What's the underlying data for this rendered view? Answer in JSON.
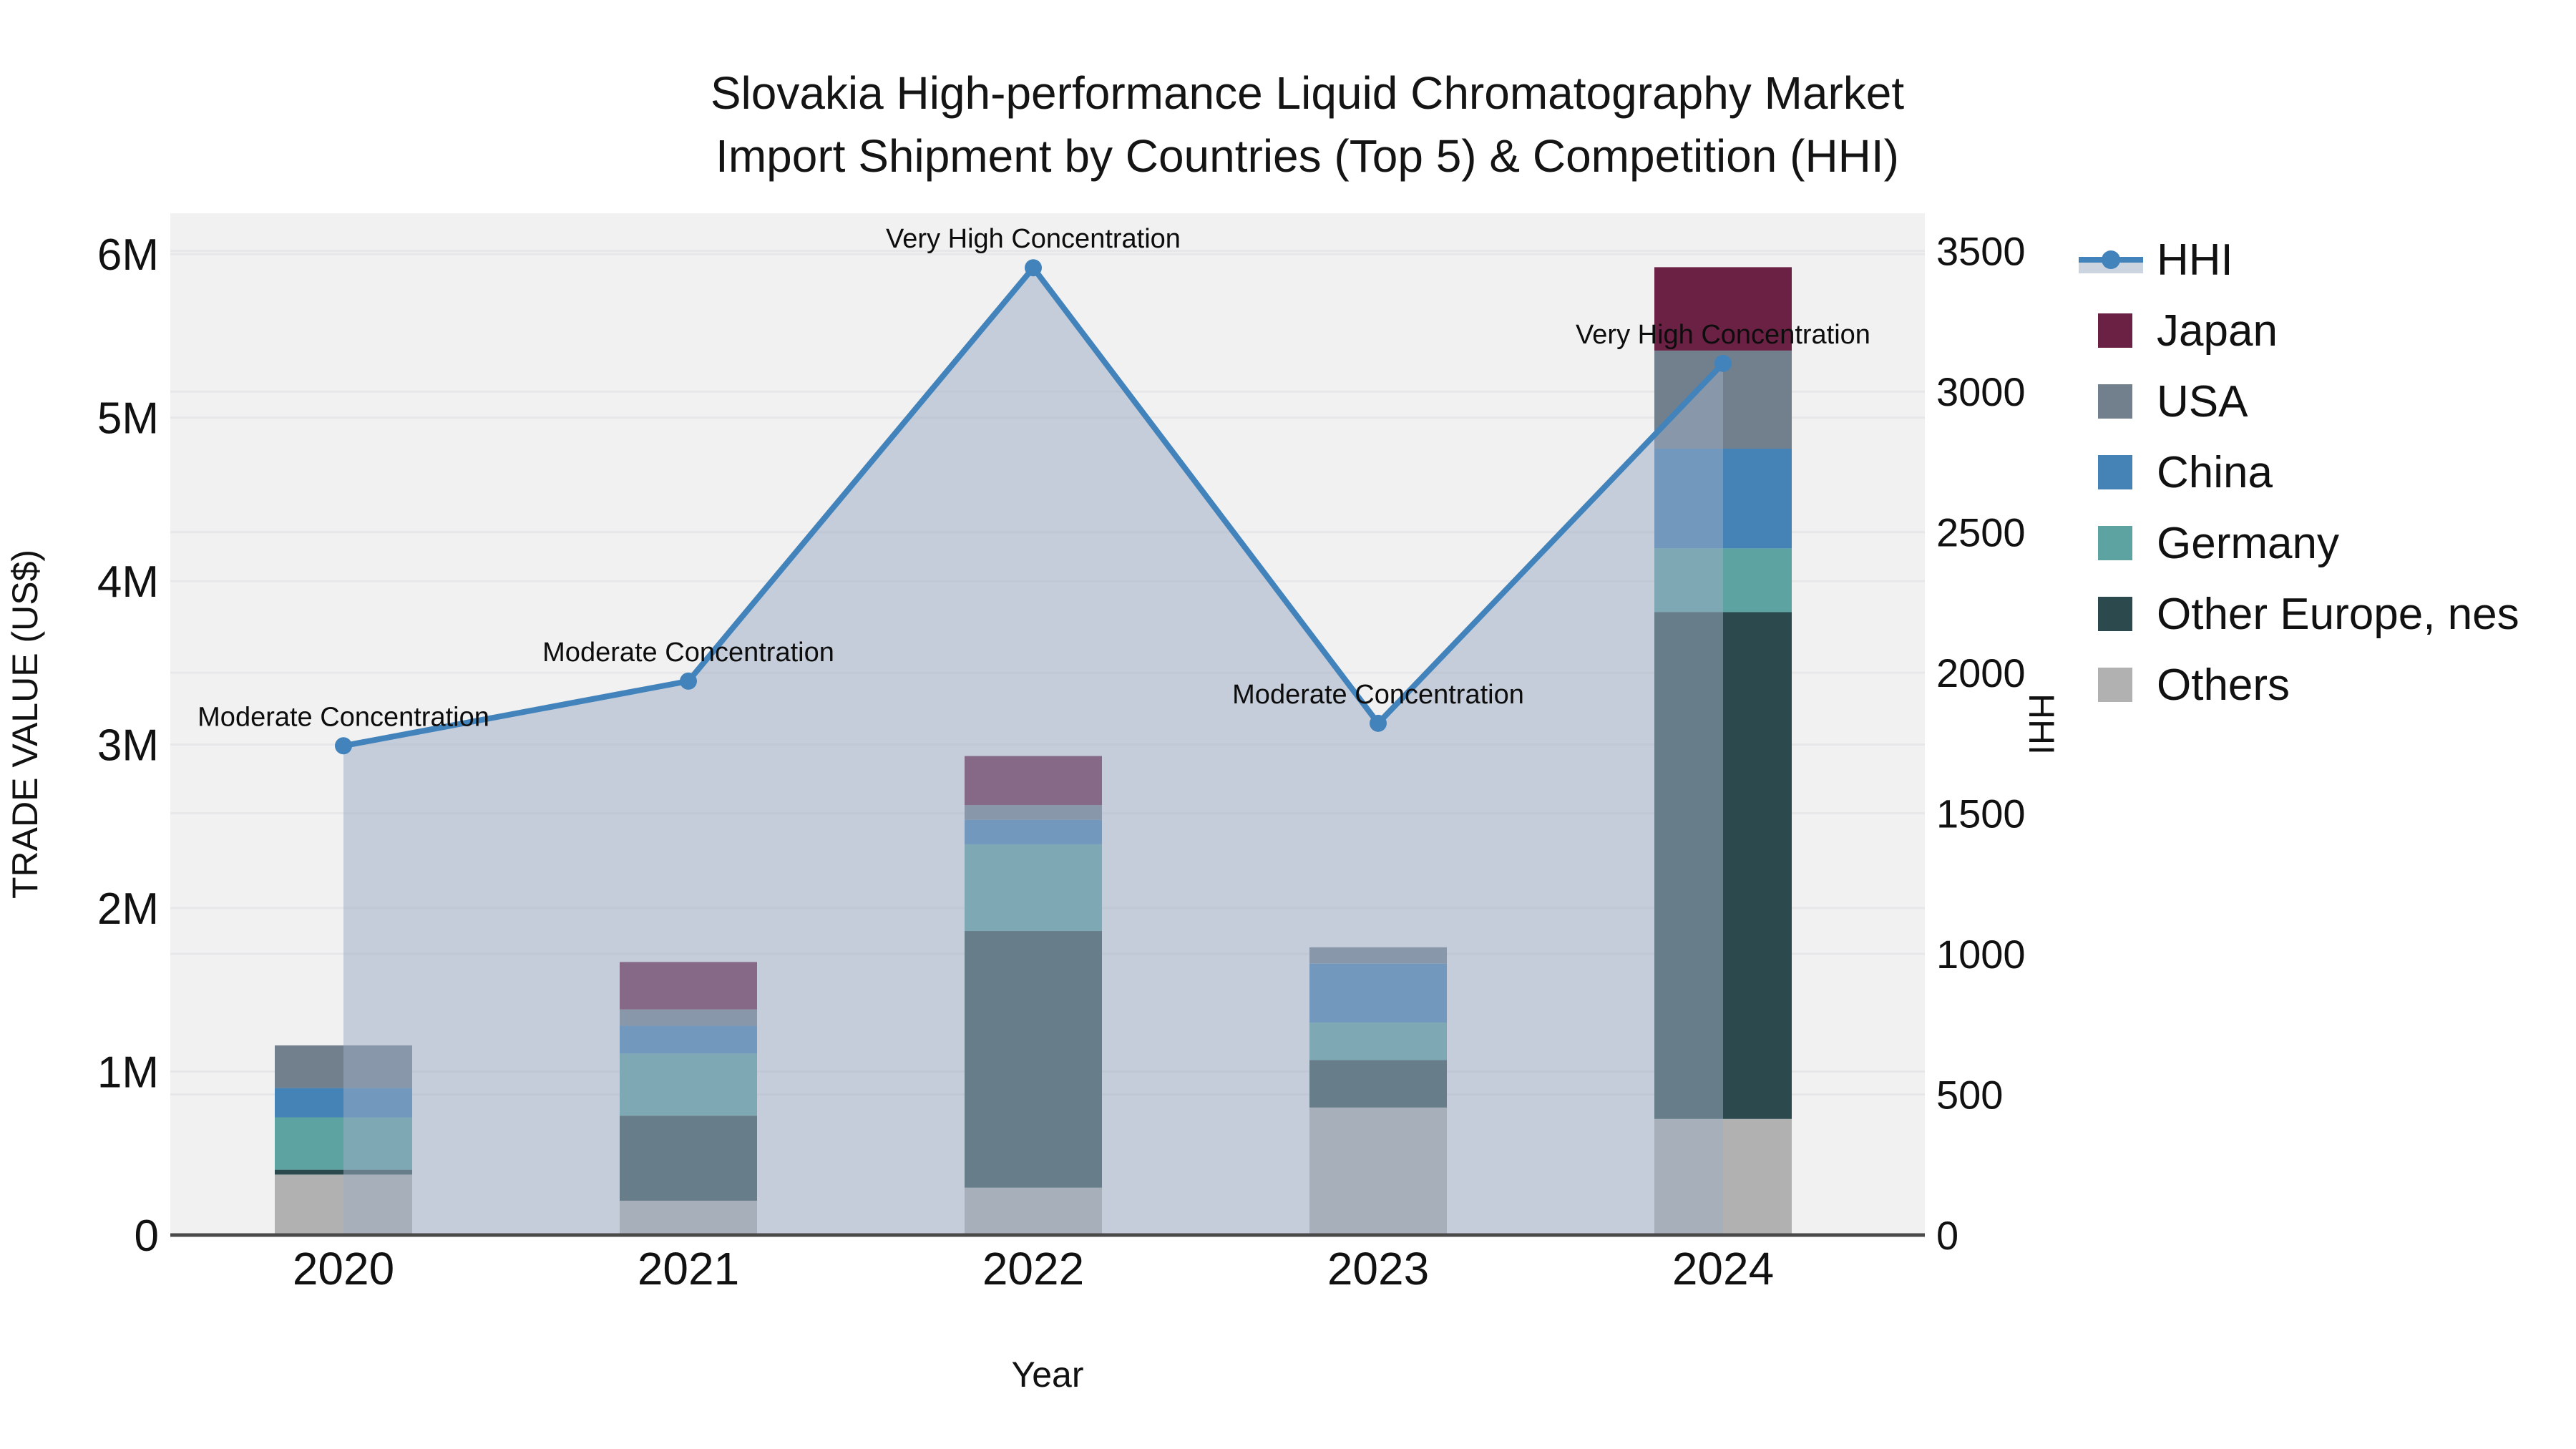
{
  "title": {
    "line1": "Slovakia High-performance Liquid Chromatography Market",
    "line2": "Import Shipment by Countries (Top 5) & Competition (HHI)"
  },
  "axes": {
    "y_left": {
      "label": "TRADE VALUE (US$)",
      "ticks": [
        "0",
        "1M",
        "2M",
        "3M",
        "4M",
        "5M",
        "6M"
      ],
      "tick_values": [
        0,
        1,
        2,
        3,
        4,
        5,
        6
      ],
      "range_millions": [
        0,
        6.25
      ]
    },
    "y_right": {
      "label": "HHI",
      "ticks": [
        "0",
        "500",
        "1000",
        "1500",
        "2000",
        "2500",
        "3000",
        "3500"
      ],
      "tick_values": [
        0,
        500,
        1000,
        1500,
        2000,
        2500,
        3000,
        3500
      ],
      "range": [
        0,
        3634
      ]
    },
    "x": {
      "label": "Year",
      "categories": [
        "2020",
        "2021",
        "2022",
        "2023",
        "2024"
      ]
    }
  },
  "legend": {
    "items": [
      {
        "label": "HHI",
        "type": "line",
        "color": "#4383bb"
      },
      {
        "label": "Japan",
        "type": "swatch",
        "color": "#6b2143"
      },
      {
        "label": "USA",
        "type": "swatch",
        "color": "#72808d"
      },
      {
        "label": "China",
        "type": "swatch",
        "color": "#4583b6"
      },
      {
        "label": "Germany",
        "type": "swatch",
        "color": "#5da3a1"
      },
      {
        "label": "Other Europe, nes",
        "type": "swatch",
        "color": "#2c4a4d"
      },
      {
        "label": "Others",
        "type": "swatch",
        "color": "#b0b1b0"
      }
    ]
  },
  "colors": {
    "plot_bg": "#f1f1f2",
    "gridline": "#e7e7e9",
    "axis_line": "#4a4a4a",
    "hhi_line": "#4383bb",
    "hhi_area": "rgba(157,172,196,0.52)",
    "Japan": "#6b2143",
    "USA": "#72808d",
    "China": "#4583b6",
    "Germany": "#5da3a1",
    "Other Europe, nes": "#2c4a4d",
    "Others": "#b0b1b0"
  },
  "chart_data": {
    "type": "combo: stacked-bar (trade value, US$) + line-with-area (HHI)",
    "categories": [
      "2020",
      "2021",
      "2022",
      "2023",
      "2024"
    ],
    "bar_unit": "US$ millions",
    "stack_order_bottom_to_top": [
      "Others",
      "Other Europe, nes",
      "Germany",
      "China",
      "USA",
      "Japan"
    ],
    "series": [
      {
        "name": "Japan",
        "values": [
          0,
          0.29,
          0.3,
          0,
          0.51
        ]
      },
      {
        "name": "USA",
        "values": [
          0.26,
          0.1,
          0.09,
          0.1,
          0.6
        ]
      },
      {
        "name": "China",
        "values": [
          0.18,
          0.17,
          0.15,
          0.36,
          0.61
        ]
      },
      {
        "name": "Germany",
        "values": [
          0.32,
          0.38,
          0.53,
          0.23,
          0.39
        ]
      },
      {
        "name": "Other Europe, nes",
        "values": [
          0.03,
          0.52,
          1.57,
          0.29,
          3.1
        ]
      },
      {
        "name": "Others",
        "values": [
          0.37,
          0.21,
          0.29,
          0.78,
          0.71
        ]
      }
    ],
    "hhi": {
      "name": "HHI",
      "values": [
        1740,
        1970,
        3440,
        1820,
        3100
      ]
    },
    "annotations": [
      "Moderate Concentration",
      "Moderate Concentration",
      "Very High Concentration",
      "Moderate Concentration",
      "Very High Concentration"
    ],
    "title": "Slovakia High-performance Liquid Chromatography Market Import Shipment by Countries (Top 5) & Competition (HHI)",
    "xlabel": "Year",
    "ylabel_left": "TRADE VALUE (US$)",
    "ylabel_right": "HHI",
    "grid": true,
    "legend_position": "right"
  }
}
